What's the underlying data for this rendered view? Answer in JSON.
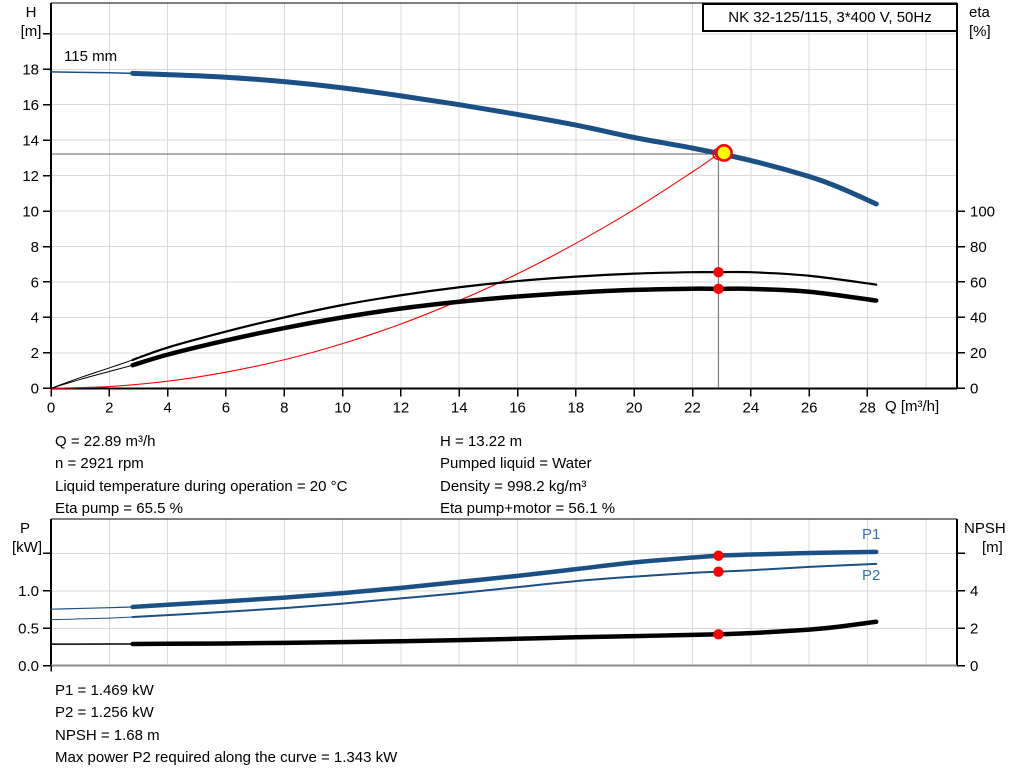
{
  "title_box": "NK 32-125/115, 3*400 V, 50Hz",
  "colors": {
    "curve_blue": "#1a5083",
    "label_blue": "#2e74b5",
    "red": "#ff0000",
    "yellow": "#ffff00",
    "grid": "#d9d9d9",
    "crosshair": "#808080",
    "axis": "#000000",
    "bottom_axis_gray": "#8c8c8c"
  },
  "info": {
    "left": [
      "Q = 22.89 m³/h",
      "n = 2921 rpm",
      "Liquid temperature during operation = 20 °C",
      "Eta pump = 65.5 %"
    ],
    "right": [
      "H = 13.22 m",
      "Pumped liquid = Water",
      "Density = 998.2 kg/m³",
      "Eta pump+motor = 56.1 %"
    ],
    "bottom": [
      "P1 = 1.469 kW",
      "P2 = 1.256 kW",
      "NPSH = 1.68 m",
      "Max power P2 required along the curve = 1.343 kW"
    ]
  },
  "chart_data": [
    {
      "type": "line",
      "name": "qh-eta-chart",
      "title": "NK 32-125/115, 3*400 V, 50Hz",
      "impeller_label": "115 mm",
      "x_axis": {
        "label": "Q [m³/h]",
        "range": [
          0,
          31.1
        ],
        "grid": [
          2,
          4,
          6,
          8,
          10,
          12,
          14,
          16,
          18,
          20,
          22,
          24,
          26,
          28,
          30
        ],
        "ticks": [
          {
            "v": 0,
            "l": "0"
          },
          {
            "v": 2,
            "l": "2"
          },
          {
            "v": 4,
            "l": "4"
          },
          {
            "v": 6,
            "l": "6"
          },
          {
            "v": 8,
            "l": "8"
          },
          {
            "v": 10,
            "l": "10"
          },
          {
            "v": 12,
            "l": "12"
          },
          {
            "v": 14,
            "l": "14"
          },
          {
            "v": 16,
            "l": "16"
          },
          {
            "v": 18,
            "l": "18"
          },
          {
            "v": 20,
            "l": "20"
          },
          {
            "v": 22,
            "l": "22"
          },
          {
            "v": 24,
            "l": "24"
          },
          {
            "v": 26,
            "l": "26"
          },
          {
            "v": 28,
            "l": "28"
          }
        ]
      },
      "left_axis": {
        "id": "H",
        "label_top": "H",
        "label_bottom": "[m]",
        "range": [
          0,
          21.7
        ],
        "grid": [
          2,
          4,
          6,
          8,
          10,
          12,
          14,
          16,
          18,
          20
        ],
        "ticks": [
          {
            "v": 0,
            "l": "0"
          },
          {
            "v": 2,
            "l": "2"
          },
          {
            "v": 4,
            "l": "4"
          },
          {
            "v": 6,
            "l": "6"
          },
          {
            "v": 8,
            "l": "8"
          },
          {
            "v": 10,
            "l": "10"
          },
          {
            "v": 12,
            "l": "12"
          },
          {
            "v": 14,
            "l": "14"
          },
          {
            "v": 16,
            "l": "16"
          },
          {
            "v": 18,
            "l": "18"
          },
          {
            "v": 20,
            "l": ""
          }
        ]
      },
      "right_axis": {
        "id": "eta",
        "label_top": "eta",
        "label_bottom": "[%]",
        "range": [
          0,
          100
        ],
        "ticks": [
          {
            "v": 0,
            "l": "0"
          },
          {
            "v": 20,
            "l": "20"
          },
          {
            "v": 40,
            "l": "40"
          },
          {
            "v": 60,
            "l": "60"
          },
          {
            "v": 80,
            "l": "80"
          },
          {
            "v": 100,
            "l": "100"
          }
        ]
      },
      "series": [
        {
          "name": "system-curve",
          "axis": "H",
          "color": "#ff0000",
          "width": 1.1,
          "points": [
            [
              0,
              0
            ],
            [
              2,
              0.1
            ],
            [
              4,
              0.4
            ],
            [
              6,
              0.91
            ],
            [
              8,
              1.61
            ],
            [
              10,
              2.52
            ],
            [
              12,
              3.63
            ],
            [
              14,
              4.95
            ],
            [
              16,
              6.46
            ],
            [
              18,
              8.18
            ],
            [
              20,
              10.09
            ],
            [
              22,
              12.21
            ],
            [
              22.89,
              13.22
            ]
          ]
        },
        {
          "name": "eta-pump-curve",
          "axis": "eta",
          "color": "#000000",
          "width": 2.2,
          "thin_until": 2.8,
          "thin_width": 1,
          "points": [
            [
              0,
              0
            ],
            [
              1,
              6
            ],
            [
              2,
              11.5
            ],
            [
              2.8,
              16
            ],
            [
              4,
              23
            ],
            [
              6,
              32
            ],
            [
              8,
              40
            ],
            [
              10,
              47
            ],
            [
              12,
              52.5
            ],
            [
              14,
              57
            ],
            [
              16,
              60.5
            ],
            [
              18,
              63
            ],
            [
              20,
              64.7
            ],
            [
              22,
              65.5
            ],
            [
              22.89,
              65.5
            ],
            [
              24,
              65.5
            ],
            [
              26,
              63.5
            ],
            [
              28.3,
              58.5
            ]
          ]
        },
        {
          "name": "eta-pump-motor-curve",
          "axis": "eta",
          "color": "#000000",
          "width": 4.5,
          "thin_until": 2.8,
          "thin_width": 1,
          "points": [
            [
              0,
              0
            ],
            [
              1,
              5
            ],
            [
              2,
              9.5
            ],
            [
              2.8,
              13
            ],
            [
              4,
              19
            ],
            [
              6,
              27
            ],
            [
              8,
              34
            ],
            [
              10,
              40
            ],
            [
              12,
              45
            ],
            [
              14,
              48.8
            ],
            [
              16,
              51.8
            ],
            [
              18,
              54
            ],
            [
              20,
              55.5
            ],
            [
              22,
              56.2
            ],
            [
              22.89,
              56.1
            ],
            [
              24,
              56.1
            ],
            [
              26,
              54.5
            ],
            [
              28.3,
              49.5
            ]
          ]
        },
        {
          "name": "pump-curve-115mm",
          "axis": "H",
          "color": "#1a5083",
          "width": 5,
          "thin_until": 2.8,
          "thin_width": 1.5,
          "points": [
            [
              0,
              17.85
            ],
            [
              2,
              17.8
            ],
            [
              2.8,
              17.77
            ],
            [
              4,
              17.7
            ],
            [
              6,
              17.55
            ],
            [
              8,
              17.3
            ],
            [
              10,
              16.95
            ],
            [
              12,
              16.5
            ],
            [
              14,
              16.0
            ],
            [
              16,
              15.45
            ],
            [
              18,
              14.85
            ],
            [
              20,
              14.15
            ],
            [
              22,
              13.55
            ],
            [
              24,
              12.85
            ],
            [
              26,
              11.95
            ],
            [
              27,
              11.35
            ],
            [
              28.3,
              10.4
            ]
          ]
        }
      ],
      "markers": [
        {
          "type": "crosshair",
          "q": 22.89,
          "v": 13.22,
          "axis": "H"
        },
        {
          "type": "open-circle",
          "q": 22.89,
          "v": 13.22,
          "axis": "H"
        },
        {
          "type": "duty-point",
          "q": 23.08,
          "v": 13.28,
          "axis": "H"
        },
        {
          "type": "dot",
          "q": 22.89,
          "v": 65.5,
          "axis": "eta"
        },
        {
          "type": "dot",
          "q": 22.89,
          "v": 56.1,
          "axis": "eta"
        }
      ]
    },
    {
      "type": "line",
      "name": "power-npsh-chart",
      "labels": {
        "p1": "P1",
        "p2": "P2"
      },
      "x_axis": {
        "label": "",
        "range": [
          0,
          31.1
        ],
        "grid": [
          2,
          4,
          6,
          8,
          10,
          12,
          14,
          16,
          18,
          20,
          22,
          24,
          26,
          28,
          30
        ],
        "ticks": [],
        "mini_tick": true
      },
      "left_axis": {
        "id": "P",
        "label_top": "P",
        "label_bottom": "[kW]",
        "range": [
          0,
          1.96
        ],
        "grid": [
          0.5,
          1,
          1.5
        ],
        "ticks": [
          {
            "v": 0,
            "l": "0.0"
          },
          {
            "v": 0.5,
            "l": "0.5"
          },
          {
            "v": 1,
            "l": "1.0"
          },
          {
            "v": 1.5,
            "l": ""
          }
        ]
      },
      "right_axis": {
        "id": "NPSH",
        "label_top": "NPSH",
        "label_bottom": "[m]",
        "range": [
          0,
          7.85
        ],
        "ticks": [
          {
            "v": 0,
            "l": "0"
          },
          {
            "v": 2,
            "l": "2"
          },
          {
            "v": 4,
            "l": "4"
          },
          {
            "v": 6,
            "l": ""
          }
        ]
      },
      "series": [
        {
          "name": "p2-curve",
          "axis": "P",
          "color": "#1a5083",
          "width": 2,
          "thin_until": 2.8,
          "thin_width": 1,
          "points": [
            [
              0,
              0.615
            ],
            [
              1,
              0.625
            ],
            [
              2,
              0.635
            ],
            [
              2.8,
              0.65
            ],
            [
              4,
              0.675
            ],
            [
              6,
              0.72
            ],
            [
              8,
              0.77
            ],
            [
              10,
              0.83
            ],
            [
              12,
              0.9
            ],
            [
              14,
              0.97
            ],
            [
              16,
              1.05
            ],
            [
              18,
              1.13
            ],
            [
              20,
              1.19
            ],
            [
              22,
              1.24
            ],
            [
              22.89,
              1.256
            ],
            [
              24,
              1.275
            ],
            [
              26,
              1.32
            ],
            [
              28.3,
              1.36
            ]
          ]
        },
        {
          "name": "p1-curve",
          "axis": "P",
          "color": "#1a5083",
          "width": 4.5,
          "thin_until": 2.8,
          "thin_width": 1.2,
          "points": [
            [
              0,
              0.755
            ],
            [
              1,
              0.765
            ],
            [
              2,
              0.775
            ],
            [
              2.8,
              0.785
            ],
            [
              4,
              0.815
            ],
            [
              6,
              0.86
            ],
            [
              8,
              0.91
            ],
            [
              10,
              0.97
            ],
            [
              12,
              1.04
            ],
            [
              14,
              1.12
            ],
            [
              16,
              1.2
            ],
            [
              18,
              1.29
            ],
            [
              20,
              1.38
            ],
            [
              22,
              1.445
            ],
            [
              22.89,
              1.469
            ],
            [
              24,
              1.485
            ],
            [
              26,
              1.505
            ],
            [
              28.3,
              1.52
            ]
          ]
        },
        {
          "name": "npsh-curve",
          "axis": "NPSH",
          "color": "#000000",
          "width": 4.5,
          "thin_until": 2.8,
          "thin_width": 1.5,
          "points": [
            [
              0,
              1.15
            ],
            [
              2,
              1.16
            ],
            [
              2.8,
              1.16
            ],
            [
              4,
              1.17
            ],
            [
              6,
              1.19
            ],
            [
              8,
              1.22
            ],
            [
              10,
              1.26
            ],
            [
              12,
              1.31
            ],
            [
              14,
              1.37
            ],
            [
              16,
              1.44
            ],
            [
              18,
              1.52
            ],
            [
              20,
              1.58
            ],
            [
              22,
              1.65
            ],
            [
              22.89,
              1.68
            ],
            [
              24,
              1.74
            ],
            [
              26,
              1.93
            ],
            [
              27,
              2.08
            ],
            [
              28.3,
              2.35
            ]
          ]
        }
      ],
      "markers": [
        {
          "type": "dot",
          "q": 22.89,
          "v": 1.469,
          "axis": "P"
        },
        {
          "type": "dot",
          "q": 22.89,
          "v": 1.256,
          "axis": "P"
        },
        {
          "type": "dot",
          "q": 22.89,
          "v": 1.68,
          "axis": "NPSH"
        }
      ]
    }
  ]
}
